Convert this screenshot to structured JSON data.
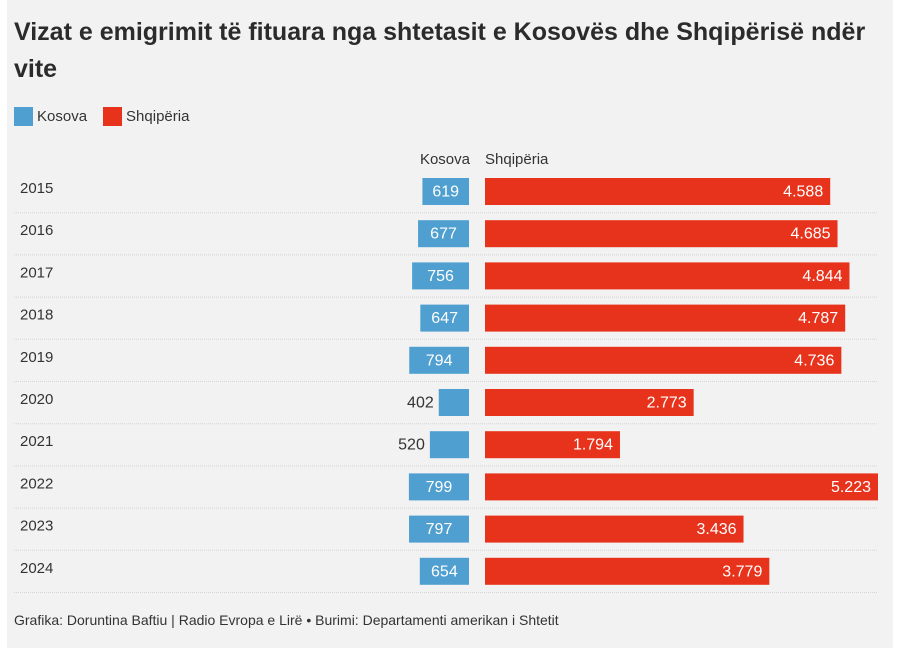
{
  "title": "Vizat e emigrimit të fituara nga shtetasit e Kosovës dhe Shqipërisë ndër vite",
  "legend": [
    {
      "label": "Kosova",
      "color": "#4f9fd0"
    },
    {
      "label": "Shqipëria",
      "color": "#e8331c"
    }
  ],
  "column_headers": {
    "kosova": "Kosova",
    "shqiperia": "Shqipëria"
  },
  "footer": "Grafika: Doruntina Baftiu | Radio Evropa e Lirë • Burimi: Departamenti amerikan i Shtetit",
  "chart_data": {
    "type": "bar",
    "orientation": "horizontal-diverging",
    "categories": [
      "2015",
      "2016",
      "2017",
      "2018",
      "2019",
      "2020",
      "2021",
      "2022",
      "2023",
      "2024"
    ],
    "series": [
      {
        "name": "Kosova",
        "color": "#4f9fd0",
        "values": [
          619,
          677,
          756,
          647,
          794,
          402,
          520,
          799,
          797,
          654
        ],
        "labels": [
          "619",
          "677",
          "756",
          "647",
          "794",
          "402",
          "520",
          "799",
          "797",
          "654"
        ]
      },
      {
        "name": "Shqipëria",
        "color": "#e8331c",
        "values": [
          4588,
          4685,
          4844,
          4787,
          4736,
          2773,
          1794,
          5223,
          3436,
          3779
        ],
        "labels": [
          "4.588",
          "4.685",
          "4.844",
          "4.787",
          "4.736",
          "2.773",
          "1.794",
          "5.223",
          "3.436",
          "3.779"
        ]
      }
    ],
    "grid": true,
    "legend_position": "top-left"
  }
}
